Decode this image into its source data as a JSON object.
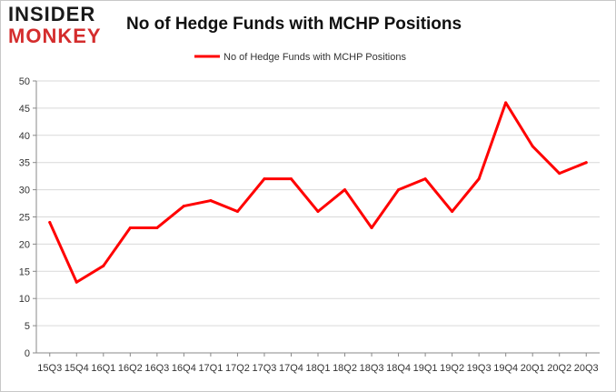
{
  "logo": {
    "line1": "INSIDER",
    "line2": "MONKEY"
  },
  "chart_data": {
    "type": "line",
    "title": "No of Hedge Funds with MCHP Positions",
    "xlabel": "",
    "ylabel": "",
    "categories": [
      "15Q3",
      "15Q4",
      "16Q1",
      "16Q2",
      "16Q3",
      "16Q4",
      "17Q1",
      "17Q2",
      "17Q3",
      "17Q4",
      "18Q1",
      "18Q2",
      "18Q3",
      "18Q4",
      "19Q1",
      "19Q2",
      "19Q3",
      "19Q4",
      "20Q1",
      "20Q2",
      "20Q3"
    ],
    "series": [
      {
        "name": "No of Hedge Funds with MCHP Positions",
        "color": "#ff0000",
        "values": [
          24,
          13,
          16,
          23,
          23,
          27,
          28,
          26,
          32,
          32,
          26,
          30,
          23,
          30,
          32,
          26,
          32,
          46,
          38,
          33,
          35
        ]
      }
    ],
    "ylim": [
      0,
      50
    ],
    "yticks": [
      0,
      5,
      10,
      15,
      20,
      25,
      30,
      35,
      40,
      45,
      50
    ],
    "grid": true,
    "legend_position": "top-center"
  }
}
